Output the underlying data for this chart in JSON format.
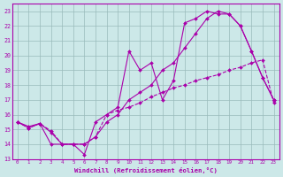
{
  "xlabel": "Windchill (Refroidissement éolien,°C)",
  "xlim": [
    -0.5,
    23.5
  ],
  "ylim": [
    13,
    23.5
  ],
  "yticks": [
    13,
    14,
    15,
    16,
    17,
    18,
    19,
    20,
    21,
    22,
    23
  ],
  "xticks": [
    0,
    1,
    2,
    3,
    4,
    5,
    6,
    7,
    8,
    9,
    10,
    11,
    12,
    13,
    14,
    15,
    16,
    17,
    18,
    19,
    20,
    21,
    22,
    23
  ],
  "bg_color": "#cce8e8",
  "line_color": "#aa00aa",
  "grid_color": "#99bbbb",
  "line1_x": [
    0,
    1,
    2,
    3,
    4,
    5,
    6,
    7,
    8,
    9,
    10,
    11,
    12,
    13,
    14,
    15,
    16,
    17,
    18,
    19,
    20,
    21,
    22,
    23
  ],
  "line1_y": [
    15.5,
    15.1,
    15.4,
    14.9,
    14.0,
    14.0,
    14.0,
    14.5,
    16.0,
    16.3,
    16.5,
    16.8,
    17.2,
    17.5,
    17.8,
    18.0,
    18.3,
    18.5,
    18.7,
    19.0,
    19.2,
    19.5,
    19.7,
    16.8
  ],
  "line2_x": [
    0,
    1,
    2,
    3,
    4,
    5,
    6,
    7,
    8,
    9,
    10,
    11,
    12,
    13,
    14,
    15,
    16,
    17,
    18,
    19,
    20,
    21,
    22,
    23
  ],
  "line2_y": [
    15.5,
    15.1,
    15.4,
    14.0,
    14.0,
    14.0,
    13.3,
    15.5,
    16.0,
    16.5,
    20.3,
    19.0,
    19.5,
    17.0,
    18.3,
    22.2,
    22.5,
    23.0,
    22.8,
    22.8,
    22.0,
    20.3,
    18.5,
    17.0
  ],
  "line3_x": [
    0,
    1,
    2,
    3,
    4,
    5,
    6,
    7,
    8,
    9,
    10,
    11,
    12,
    13,
    14,
    15,
    16,
    17,
    18,
    19,
    20,
    21,
    22,
    23
  ],
  "line3_y": [
    15.5,
    15.2,
    15.4,
    14.8,
    14.0,
    14.0,
    14.0,
    14.5,
    15.5,
    16.0,
    17.0,
    17.5,
    18.0,
    19.0,
    19.5,
    20.5,
    21.5,
    22.5,
    23.0,
    22.8,
    22.0,
    20.3,
    18.5,
    17.0
  ]
}
